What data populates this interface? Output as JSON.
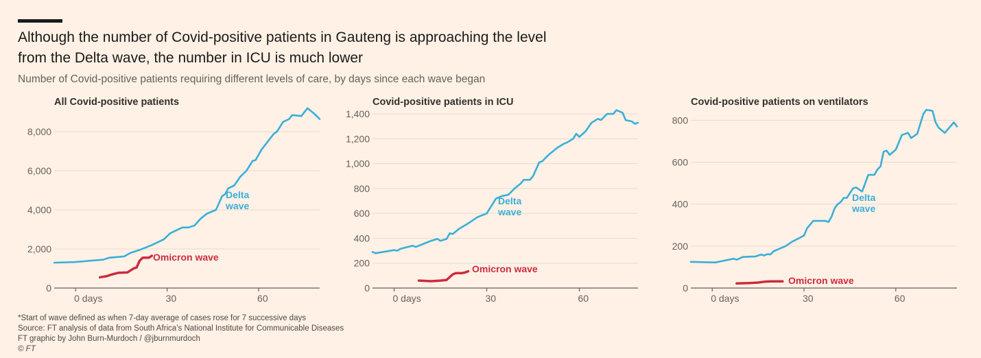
{
  "header": {
    "title": "Although the number of Covid-positive patients in Gauteng is approaching the level from the Delta wave, the number in ICU is much lower",
    "subtitle": "Number of Covid-positive patients requiring different levels of care, by days since each wave began"
  },
  "footer": {
    "note": "*Start of wave defined as when 7-day average of cases rose for 7 successive days",
    "source": "Source: FT analysis of data from South Africa’s National Institute for Communicable Diseases",
    "credit": "FT graphic by John Burn-Murdoch / @jburnmurdoch",
    "copyright": "© FT"
  },
  "colors": {
    "delta": "#3aaed8",
    "omicron": "#cc2b3f",
    "grid": "#e6d9ce",
    "axis": "#66605c",
    "background": "#fff1e5"
  },
  "chart_data": [
    {
      "type": "line",
      "title": "All Covid-positive patients",
      "xlabel": "days since wave began",
      "ylabel": "",
      "xlim": [
        -7,
        80
      ],
      "ylim": [
        0,
        9300
      ],
      "yticks": [
        0,
        2000,
        4000,
        6000,
        8000
      ],
      "ytick_labels": [
        "0",
        "2,000",
        "4,000",
        "6,000",
        "8,000"
      ],
      "xticks": [
        0,
        30,
        60
      ],
      "xtick_labels": [
        "0 days",
        "30",
        "60"
      ],
      "grid": true,
      "series": [
        {
          "name": "Delta wave",
          "label_lines": [
            "Delta",
            "wave"
          ],
          "color": "#3aaed8",
          "x": [
            -7,
            0,
            5,
            9,
            11,
            16,
            18,
            21,
            25,
            29,
            31,
            35,
            37,
            39,
            41,
            43,
            46,
            48,
            49,
            50,
            52,
            54,
            56,
            58,
            59,
            61,
            63,
            65,
            66,
            68,
            70,
            71,
            74,
            76,
            78,
            80
          ],
          "y": [
            1300,
            1330,
            1400,
            1450,
            1550,
            1620,
            1800,
            1950,
            2200,
            2500,
            2800,
            3100,
            3100,
            3200,
            3550,
            3800,
            4000,
            4700,
            4800,
            5100,
            5250,
            5700,
            6000,
            6500,
            6550,
            7100,
            7500,
            7900,
            8000,
            8500,
            8650,
            8850,
            8800,
            9200,
            8950,
            8650
          ]
        },
        {
          "name": "Omicron wave",
          "label_lines": [
            "Omicron wave"
          ],
          "color": "#cc2b3f",
          "x": [
            8,
            10,
            12,
            14,
            17,
            19,
            20,
            21,
            22,
            24,
            25
          ],
          "y": [
            550,
            600,
            700,
            780,
            800,
            1000,
            1050,
            1400,
            1550,
            1550,
            1650
          ]
        }
      ]
    },
    {
      "type": "line",
      "title": "Covid-positive patients in ICU",
      "xlabel": "days since wave began",
      "ylabel": "",
      "xlim": [
        -7,
        79
      ],
      "ylim": [
        0,
        1450
      ],
      "yticks": [
        0,
        200,
        400,
        600,
        800,
        1000,
        1200,
        1400
      ],
      "ytick_labels": [
        "0",
        "200",
        "400",
        "600",
        "800",
        "1,000",
        "1,200",
        "1,400"
      ],
      "xticks": [
        0,
        30,
        60
      ],
      "xtick_labels": [
        "0 days",
        "30",
        "60"
      ],
      "grid": true,
      "series": [
        {
          "name": "Delta wave",
          "label_lines": [
            "Delta",
            "wave"
          ],
          "color": "#3aaed8",
          "x": [
            -7,
            -6,
            0,
            1,
            2,
            6,
            7,
            9,
            12,
            14,
            15,
            17,
            18,
            19,
            21,
            24,
            27,
            29,
            30,
            31,
            33,
            35,
            37,
            39,
            41,
            42,
            44,
            45,
            47,
            48,
            50,
            53,
            55,
            56,
            58,
            59,
            60,
            62,
            64,
            66,
            67,
            69,
            71,
            72,
            74,
            75,
            77,
            78,
            79
          ],
          "y": [
            290,
            280,
            305,
            300,
            315,
            340,
            330,
            350,
            380,
            395,
            380,
            395,
            440,
            435,
            475,
            520,
            570,
            590,
            600,
            640,
            720,
            740,
            750,
            800,
            840,
            870,
            870,
            900,
            1010,
            1020,
            1070,
            1130,
            1160,
            1170,
            1200,
            1240,
            1215,
            1260,
            1330,
            1360,
            1350,
            1400,
            1400,
            1430,
            1410,
            1350,
            1340,
            1320,
            1330
          ]
        },
        {
          "name": "Omicron wave",
          "label_lines": [
            "Omicron wave"
          ],
          "color": "#cc2b3f",
          "x": [
            8,
            12,
            15,
            17,
            19,
            20,
            22,
            23,
            24
          ],
          "y": [
            60,
            55,
            60,
            65,
            110,
            120,
            120,
            125,
            135
          ]
        }
      ]
    },
    {
      "type": "line",
      "title": "Covid-positive patients on ventilators",
      "xlabel": "days since wave began",
      "ylabel": "",
      "xlim": [
        -7,
        80
      ],
      "ylim": [
        0,
        860
      ],
      "yticks": [
        0,
        200,
        400,
        600,
        800
      ],
      "ytick_labels": [
        "0",
        "200",
        "400",
        "600",
        "800"
      ],
      "xticks": [
        0,
        30,
        60
      ],
      "xtick_labels": [
        "0 days",
        "30",
        "60"
      ],
      "grid": true,
      "series": [
        {
          "name": "Delta wave",
          "label_lines": [
            "Delta",
            "wave"
          ],
          "color": "#3aaed8",
          "x": [
            -7,
            1,
            3,
            7,
            8,
            10,
            13,
            14,
            16,
            17,
            18,
            19,
            20,
            24,
            26,
            28,
            30,
            31,
            33,
            35,
            37,
            38,
            39,
            40,
            41,
            42,
            43,
            44,
            46,
            47,
            49,
            51,
            53,
            54,
            55,
            56,
            57,
            58,
            60,
            62,
            64,
            65,
            67,
            69,
            70,
            72,
            73,
            74,
            76,
            79,
            80
          ],
          "y": [
            125,
            122,
            128,
            140,
            135,
            148,
            150,
            150,
            160,
            155,
            162,
            160,
            175,
            200,
            220,
            235,
            250,
            285,
            320,
            320,
            320,
            315,
            340,
            380,
            400,
            410,
            430,
            430,
            475,
            480,
            460,
            540,
            540,
            565,
            580,
            650,
            655,
            635,
            660,
            730,
            740,
            715,
            735,
            830,
            850,
            845,
            790,
            765,
            740,
            790,
            770
          ]
        },
        {
          "name": "Omicron wave",
          "label_lines": [
            "Omicron wave"
          ],
          "color": "#cc2b3f",
          "x": [
            8,
            12,
            15,
            17,
            19,
            23
          ],
          "y": [
            22,
            24,
            26,
            30,
            32,
            32
          ]
        }
      ]
    }
  ]
}
